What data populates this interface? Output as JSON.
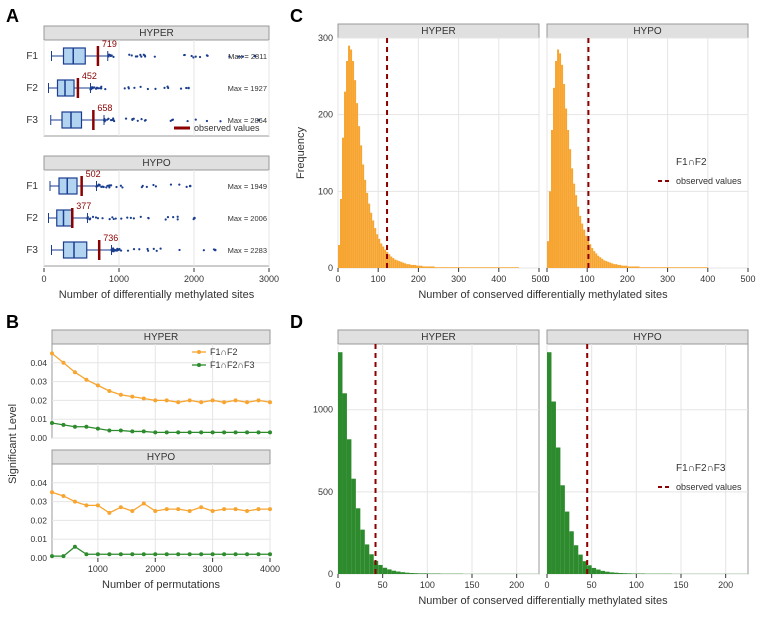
{
  "panels": {
    "A": {
      "letter": "A"
    },
    "B": {
      "letter": "B"
    },
    "C": {
      "letter": "C"
    },
    "D": {
      "letter": "D"
    }
  },
  "colors": {
    "box_fill": "#b3d4f0",
    "box_stroke": "#1a3d8f",
    "outlier": "#1a3d8f",
    "observed_line": "#8B0000",
    "facet_bg": "#e0e0e0",
    "orange": "#f7a531",
    "green": "#2d8b2d",
    "grid": "#e5e5e5",
    "panel_stroke": "#999999"
  },
  "panelA": {
    "type": "boxplot",
    "facets": [
      {
        "label": "HYPER",
        "rows": [
          {
            "name": "F1",
            "observed": 719,
            "max": 2811,
            "q1": 260,
            "median": 390,
            "q3": 550,
            "lw": 100,
            "uw": 850
          },
          {
            "name": "F2",
            "observed": 452,
            "max": 1927,
            "q1": 180,
            "median": 280,
            "q3": 400,
            "lw": 60,
            "uw": 620
          },
          {
            "name": "F3",
            "observed": 658,
            "max": 2864,
            "q1": 240,
            "median": 360,
            "q3": 500,
            "lw": 90,
            "uw": 800
          }
        ],
        "xlim": [
          0,
          3000
        ],
        "xticks": [
          0,
          1000,
          2000,
          3000
        ]
      },
      {
        "label": "HYPO",
        "rows": [
          {
            "name": "F1",
            "observed": 502,
            "max": 1949,
            "q1": 200,
            "median": 310,
            "q3": 440,
            "lw": 80,
            "uw": 700
          },
          {
            "name": "F2",
            "observed": 377,
            "max": 2006,
            "q1": 170,
            "median": 260,
            "q3": 370,
            "lw": 60,
            "uw": 580
          },
          {
            "name": "F3",
            "observed": 736,
            "max": 2283,
            "q1": 260,
            "median": 400,
            "q3": 570,
            "lw": 100,
            "uw": 900
          }
        ],
        "xlim": [
          0,
          3000
        ],
        "xticks": [
          0,
          1000,
          2000,
          3000
        ]
      }
    ],
    "xlabel": "Number of differentially methylated sites",
    "legend": "observed values"
  },
  "panelB": {
    "type": "line",
    "facets": [
      "HYPER",
      "HYPO"
    ],
    "xlabel": "Number of permutations",
    "ylabel": "Significant Level",
    "xlim": [
      200,
      4000
    ],
    "xticks": [
      1000,
      2000,
      3000,
      4000
    ],
    "ylim": [
      0,
      0.05
    ],
    "yticks": [
      0.0,
      0.01,
      0.02,
      0.03,
      0.04
    ],
    "series": [
      {
        "name": "F1∩F2",
        "color": "#f7a531"
      },
      {
        "name": "F1∩F2∩F3",
        "color": "#2d8b2d"
      }
    ],
    "data": {
      "HYPER": {
        "F1∩F2": [
          0.045,
          0.04,
          0.035,
          0.031,
          0.028,
          0.025,
          0.023,
          0.022,
          0.021,
          0.02,
          0.02,
          0.019,
          0.02,
          0.019,
          0.02,
          0.019,
          0.02,
          0.019,
          0.02,
          0.019
        ],
        "F1∩F2∩F3": [
          0.008,
          0.007,
          0.006,
          0.006,
          0.005,
          0.004,
          0.004,
          0.0035,
          0.0035,
          0.003,
          0.003,
          0.003,
          0.003,
          0.003,
          0.003,
          0.003,
          0.003,
          0.003,
          0.003,
          0.003
        ]
      },
      "HYPO": {
        "F1∩F2": [
          0.035,
          0.033,
          0.03,
          0.028,
          0.028,
          0.024,
          0.027,
          0.025,
          0.029,
          0.025,
          0.026,
          0.026,
          0.025,
          0.027,
          0.025,
          0.026,
          0.026,
          0.025,
          0.026,
          0.026
        ],
        "F1∩F2∩F3": [
          0.001,
          0.001,
          0.006,
          0.002,
          0.002,
          0.002,
          0.002,
          0.002,
          0.002,
          0.002,
          0.002,
          0.002,
          0.002,
          0.002,
          0.002,
          0.002,
          0.002,
          0.002,
          0.002,
          0.002
        ]
      },
      "x": [
        200,
        400,
        600,
        800,
        1000,
        1200,
        1400,
        1600,
        1800,
        2000,
        2200,
        2400,
        2600,
        2800,
        3000,
        3200,
        3400,
        3600,
        3800,
        4000
      ]
    }
  },
  "panelC": {
    "type": "histogram",
    "color": "#f7a531",
    "facets": [
      "HYPER",
      "HYPO"
    ],
    "xlabel": "Number of conserved differentially methylated sites",
    "ylabel": "Frequency",
    "xlim": [
      0,
      500
    ],
    "xticks": [
      0,
      100,
      200,
      300,
      400,
      500
    ],
    "ylim": [
      0,
      300
    ],
    "yticks": [
      0,
      100,
      200,
      300
    ],
    "observed": {
      "HYPER": 122,
      "HYPO": 103
    },
    "legend_title": "F1∩F2",
    "legend_text": "observed values",
    "bars_hyper": [
      30,
      90,
      170,
      230,
      270,
      290,
      285,
      270,
      245,
      215,
      185,
      160,
      135,
      115,
      98,
      84,
      72,
      62,
      52,
      44,
      38,
      32,
      28,
      24,
      21,
      18,
      15,
      13,
      11,
      10,
      9,
      8,
      7,
      6,
      5,
      5,
      4,
      4,
      4,
      3,
      3,
      3,
      2,
      2,
      2,
      2,
      2,
      2,
      1,
      1,
      1,
      1,
      1,
      1,
      1,
      1,
      1,
      1,
      1,
      1,
      1,
      1,
      1,
      1,
      1,
      1,
      1,
      1,
      1,
      1,
      1,
      1,
      1,
      1,
      1,
      1,
      1,
      1,
      1,
      1,
      1,
      1,
      1,
      1,
      1,
      1,
      1,
      1,
      1,
      1,
      0,
      0,
      0,
      0,
      0,
      0,
      0,
      0,
      0,
      0
    ],
    "bars_hypo": [
      35,
      100,
      180,
      235,
      270,
      285,
      280,
      265,
      240,
      208,
      180,
      155,
      130,
      110,
      95,
      80,
      68,
      58,
      50,
      42,
      36,
      31,
      26,
      22,
      19,
      16,
      14,
      12,
      10,
      9,
      8,
      7,
      6,
      5,
      5,
      4,
      4,
      3,
      3,
      3,
      2,
      2,
      2,
      2,
      2,
      2,
      1,
      1,
      1,
      1,
      1,
      1,
      1,
      1,
      1,
      1,
      1,
      1,
      1,
      1,
      1,
      1,
      1,
      1,
      1,
      1,
      1,
      1,
      1,
      1,
      1,
      1,
      1,
      1,
      1,
      1,
      1,
      1,
      1,
      1,
      0,
      0,
      0,
      0,
      0,
      0,
      0,
      0,
      0,
      0,
      0,
      0,
      0,
      0,
      0,
      0,
      0,
      0,
      0,
      0
    ]
  },
  "panelD": {
    "type": "histogram",
    "color": "#2d8b2d",
    "facets": [
      "HYPER",
      "HYPO"
    ],
    "xlabel": "Number of conserved differentially methylated sites",
    "xlim": [
      0,
      225
    ],
    "xticks": [
      0,
      50,
      100,
      150,
      200
    ],
    "ylim": [
      0,
      1400
    ],
    "yticks": [
      0,
      500,
      1000
    ],
    "observed": {
      "HYPER": 42,
      "HYPO": 45
    },
    "legend_title": "F1∩F2∩F3",
    "legend_text": "observed values",
    "bars_hyper": [
      1350,
      1100,
      820,
      580,
      400,
      270,
      180,
      120,
      80,
      55,
      38,
      28,
      20,
      15,
      11,
      8,
      6,
      5,
      4,
      4,
      3,
      3,
      3,
      2,
      2,
      2,
      2,
      2,
      1,
      1,
      1,
      1,
      1,
      1,
      1,
      1,
      1,
      1,
      1,
      1,
      1,
      1,
      1,
      1,
      1
    ],
    "bars_hypo": [
      1350,
      1050,
      770,
      540,
      380,
      260,
      175,
      118,
      78,
      53,
      37,
      27,
      19,
      14,
      10,
      8,
      6,
      5,
      4,
      3,
      3,
      3,
      2,
      2,
      2,
      2,
      2,
      2,
      1,
      1,
      1,
      1,
      1,
      1,
      1,
      1,
      1,
      1,
      1,
      1,
      1,
      1,
      1,
      1,
      1
    ]
  }
}
